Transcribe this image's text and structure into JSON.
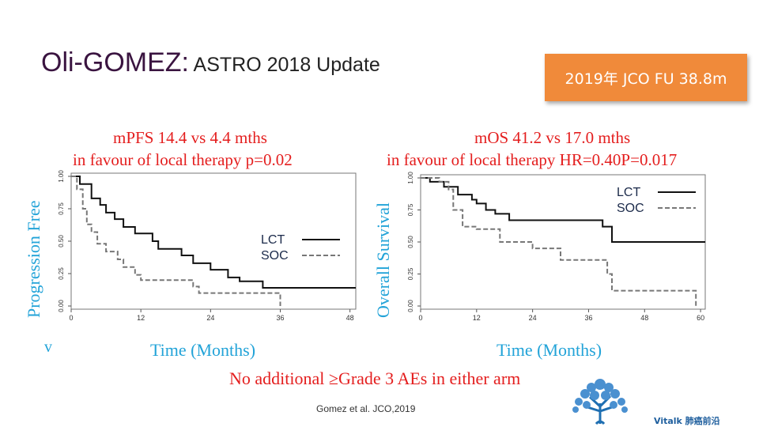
{
  "slide": {
    "title_main": "Oli-GOMEZ:",
    "title_sub": " ASTRO 2018 Update",
    "badge": "2019年 JCO FU 38.8m",
    "footnote": "No additional ≥Grade 3 AEs in either arm",
    "reference": "Gomez et al. JCO,2019",
    "brand": "Vitalk 肺癌前沿"
  },
  "chart_data": [
    {
      "type": "line",
      "title": "mPFS 14.4  vs 4.4 mths",
      "subtitle": "in favour of local therapy p=0.02",
      "xlabel": "Time (Months)",
      "ylabel": "Progression Free",
      "ylabel_fragment": "v",
      "xlim": [
        0,
        49
      ],
      "ylim": [
        0,
        1
      ],
      "x_ticks": [
        "0",
        "12",
        "24",
        "36",
        "48"
      ],
      "y_ticks": [
        "0.00",
        "0.25",
        "0.50",
        "0.75",
        "1.00"
      ],
      "legend_position": "right",
      "series": [
        {
          "name": "LCT",
          "style": "solid",
          "points": [
            [
              0,
              1.0
            ],
            [
              1.5,
              1.0
            ],
            [
              1.5,
              0.94
            ],
            [
              3.5,
              0.94
            ],
            [
              3.5,
              0.83
            ],
            [
              5,
              0.83
            ],
            [
              5,
              0.78
            ],
            [
              6,
              0.78
            ],
            [
              6,
              0.72
            ],
            [
              7.5,
              0.72
            ],
            [
              7.5,
              0.67
            ],
            [
              9,
              0.67
            ],
            [
              9,
              0.61
            ],
            [
              11,
              0.61
            ],
            [
              11,
              0.56
            ],
            [
              14,
              0.56
            ],
            [
              14,
              0.5
            ],
            [
              15,
              0.5
            ],
            [
              15,
              0.44
            ],
            [
              19,
              0.44
            ],
            [
              19,
              0.39
            ],
            [
              21,
              0.39
            ],
            [
              21,
              0.33
            ],
            [
              24,
              0.33
            ],
            [
              24,
              0.28
            ],
            [
              27,
              0.28
            ],
            [
              27,
              0.22
            ],
            [
              29,
              0.22
            ],
            [
              29,
              0.19
            ],
            [
              33,
              0.19
            ],
            [
              33,
              0.14
            ],
            [
              49,
              0.14
            ]
          ]
        },
        {
          "name": "SOC",
          "style": "dashed",
          "points": [
            [
              0,
              1.0
            ],
            [
              1,
              1.0
            ],
            [
              1,
              0.9
            ],
            [
              2,
              0.9
            ],
            [
              2,
              0.75
            ],
            [
              2.7,
              0.75
            ],
            [
              2.7,
              0.63
            ],
            [
              3.5,
              0.63
            ],
            [
              3.5,
              0.57
            ],
            [
              4.5,
              0.57
            ],
            [
              4.5,
              0.48
            ],
            [
              6,
              0.48
            ],
            [
              6,
              0.42
            ],
            [
              8,
              0.42
            ],
            [
              8,
              0.36
            ],
            [
              9,
              0.36
            ],
            [
              9,
              0.3
            ],
            [
              11,
              0.3
            ],
            [
              11,
              0.24
            ],
            [
              12,
              0.24
            ],
            [
              12,
              0.2
            ],
            [
              21,
              0.2
            ],
            [
              21,
              0.15
            ],
            [
              22,
              0.15
            ],
            [
              22,
              0.1
            ],
            [
              36,
              0.1
            ],
            [
              36,
              0.0
            ]
          ]
        }
      ]
    },
    {
      "type": "line",
      "title": "mOS 41.2 vs 17.0 mths",
      "subtitle": "in favour of local therapy HR=0.40P=0.017",
      "xlabel": "Time (Months)",
      "ylabel": "Overall Survival",
      "xlim": [
        0,
        61
      ],
      "ylim": [
        0,
        1
      ],
      "x_ticks": [
        "0",
        "12",
        "24",
        "36",
        "48",
        "60"
      ],
      "y_ticks": [
        "0.00",
        "0.25",
        "0.50",
        "0.75",
        "1.00"
      ],
      "legend_position": "top-right",
      "series": [
        {
          "name": "LCT",
          "style": "solid",
          "points": [
            [
              0,
              1.0
            ],
            [
              2,
              1.0
            ],
            [
              2,
              0.97
            ],
            [
              5,
              0.97
            ],
            [
              5,
              0.93
            ],
            [
              8,
              0.93
            ],
            [
              8,
              0.87
            ],
            [
              11,
              0.87
            ],
            [
              11,
              0.83
            ],
            [
              12,
              0.83
            ],
            [
              12,
              0.8
            ],
            [
              14,
              0.8
            ],
            [
              14,
              0.75
            ],
            [
              16,
              0.75
            ],
            [
              16,
              0.72
            ],
            [
              19,
              0.72
            ],
            [
              19,
              0.67
            ],
            [
              39,
              0.67
            ],
            [
              39,
              0.62
            ],
            [
              41,
              0.62
            ],
            [
              41,
              0.5
            ],
            [
              61,
              0.5
            ]
          ]
        },
        {
          "name": "SOC",
          "style": "dashed",
          "points": [
            [
              0,
              1.0
            ],
            [
              4,
              1.0
            ],
            [
              4,
              0.97
            ],
            [
              6,
              0.97
            ],
            [
              6,
              0.91
            ],
            [
              7,
              0.91
            ],
            [
              7,
              0.75
            ],
            [
              9,
              0.75
            ],
            [
              9,
              0.62
            ],
            [
              12,
              0.62
            ],
            [
              12,
              0.6
            ],
            [
              17,
              0.6
            ],
            [
              17,
              0.5
            ],
            [
              24,
              0.5
            ],
            [
              24,
              0.45
            ],
            [
              30,
              0.45
            ],
            [
              30,
              0.36
            ],
            [
              40,
              0.36
            ],
            [
              40,
              0.25
            ],
            [
              41,
              0.25
            ],
            [
              41,
              0.12
            ],
            [
              59,
              0.12
            ],
            [
              59,
              0.0
            ]
          ]
        }
      ]
    }
  ]
}
